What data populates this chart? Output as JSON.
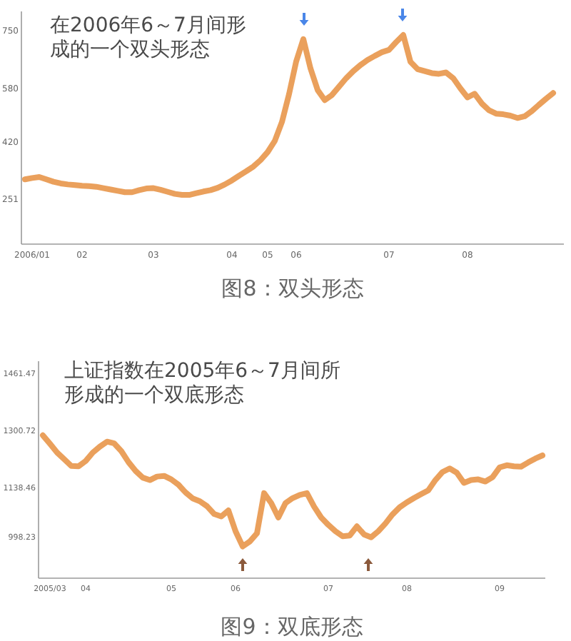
{
  "chart_data": [
    {
      "type": "line",
      "title": "图8：双头形态",
      "annotations": [
        "在2006年6～7月间形成的一个双头形态"
      ],
      "categories": [
        null,
        "2006/01",
        null,
        null,
        null,
        null,
        null,
        null,
        "02",
        null,
        null,
        null,
        null,
        null,
        null,
        null,
        null,
        null,
        "03",
        null,
        null,
        null,
        null,
        null,
        null,
        null,
        null,
        null,
        null,
        "04",
        null,
        null,
        null,
        null,
        "05",
        null,
        null,
        null,
        "06",
        null,
        null,
        null,
        null,
        null,
        null,
        null,
        null,
        null,
        null,
        null,
        null,
        "07",
        null,
        null,
        null,
        null,
        null,
        null,
        null,
        null,
        null,
        null,
        "08",
        null,
        null,
        null,
        null,
        null,
        null,
        null,
        null,
        null,
        null,
        null,
        null
      ],
      "series": [
        {
          "color": "#e8964a",
          "values": [
            312,
            316,
            319,
            312,
            305,
            300,
            297,
            295,
            293,
            292,
            290,
            286,
            282,
            278,
            274,
            274,
            280,
            285,
            286,
            281,
            275,
            269,
            266,
            266,
            271,
            276,
            280,
            287,
            297,
            309,
            323,
            336,
            350,
            369,
            393,
            426,
            482,
            565,
            662,
            728,
            641,
            577,
            547,
            562,
            587,
            612,
            633,
            651,
            666,
            678,
            689,
            696,
            719,
            740,
            661,
            639,
            633,
            627,
            625,
            629,
            612,
            582,
            555,
            566,
            537,
            517,
            507,
            505,
            501,
            494,
            499,
            514,
            533,
            551,
            568
          ]
        }
      ],
      "ylim": [
        120,
        810
      ],
      "yticks": [
        251,
        420,
        580,
        750
      ],
      "line_style": "solid"
    },
    {
      "type": "line",
      "title": "图9：双底形态",
      "annotations": [
        "上证指数在2005年6～7月间所形成的一个双底形态"
      ],
      "categories": [
        null,
        "2005/03",
        null,
        null,
        null,
        null,
        "04",
        null,
        null,
        null,
        null,
        null,
        null,
        null,
        null,
        null,
        null,
        null,
        "05",
        null,
        null,
        null,
        null,
        null,
        null,
        null,
        null,
        "06",
        null,
        null,
        null,
        null,
        null,
        null,
        null,
        null,
        null,
        null,
        null,
        null,
        "07",
        null,
        null,
        null,
        null,
        null,
        null,
        null,
        null,
        null,
        null,
        "08",
        null,
        null,
        null,
        null,
        null,
        null,
        null,
        null,
        null,
        null,
        null,
        null,
        "09",
        null,
        null,
        null,
        null,
        null,
        null
      ],
      "series": [
        {
          "color": "#e8964a",
          "values": [
            1290,
            1266,
            1241,
            1222,
            1203,
            1202,
            1217,
            1241,
            1258,
            1272,
            1267,
            1245,
            1214,
            1189,
            1170,
            1163,
            1173,
            1175,
            1165,
            1150,
            1128,
            1111,
            1103,
            1089,
            1067,
            1060,
            1077,
            1018,
            975,
            989,
            1012,
            1126,
            1098,
            1057,
            1098,
            1112,
            1121,
            1126,
            1088,
            1057,
            1036,
            1018,
            1004,
            1006,
            1032,
            1009,
            1001,
            1018,
            1040,
            1066,
            1086,
            1100,
            1112,
            1123,
            1134,
            1163,
            1186,
            1196,
            1184,
            1155,
            1163,
            1165,
            1159,
            1171,
            1199,
            1205,
            1202,
            1201,
            1213,
            1224,
            1233
          ]
        }
      ],
      "ylim": [
        885,
        1500
      ],
      "yticks": [
        998.23,
        1138.46,
        1300.72,
        1461.47
      ],
      "line_style": "solid"
    }
  ]
}
